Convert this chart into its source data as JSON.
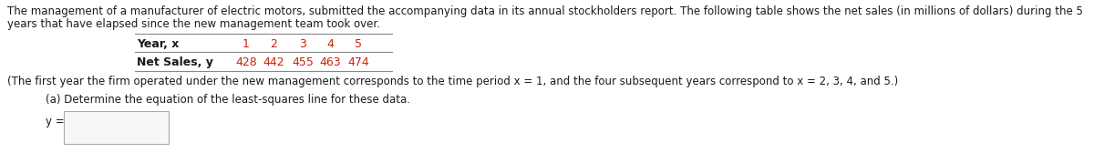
{
  "bg_color": "#ffffff",
  "text_color": "#1a1a1a",
  "red_color": "#cc2200",
  "paragraph1": "The management of a manufacturer of electric motors, submitted the accompanying data in its annual stockholders report. The following table shows the net sales (in millions of dollars) during the 5",
  "paragraph2": "years that have elapsed since the new management team took over.",
  "table_header_label": "Year, x",
  "table_header_values": [
    "1",
    "2",
    "3",
    "4",
    "5"
  ],
  "table_row_label": "Net Sales, y",
  "table_row_values": [
    "428",
    "442",
    "455",
    "463",
    "474"
  ],
  "note": "(The first year the firm operated under the new management corresponds to the time period x = 1, and the four subsequent years correspond to x = 2, 3, 4, and 5.)",
  "part_a_label": "(a) Determine the equation of the least-squares line for these data.",
  "answer_label": "y =",
  "font_size_body": 8.5,
  "font_size_table": 9.0
}
